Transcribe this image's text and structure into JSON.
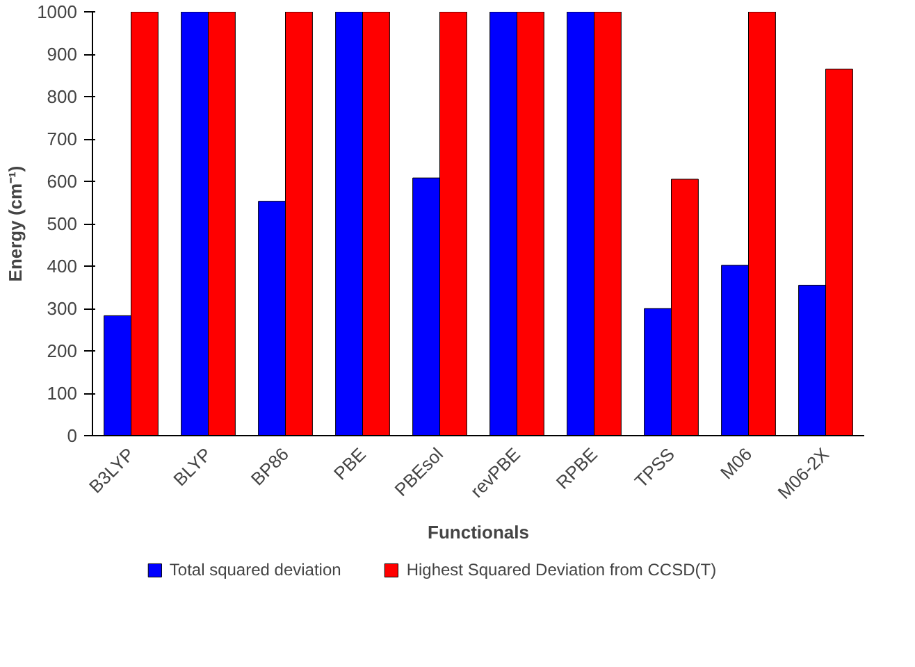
{
  "chart_data": {
    "type": "bar",
    "xlabel": "Functionals",
    "ylabel": "Energy (cm⁻¹)",
    "categories": [
      "B3LYP",
      "BLYP",
      "BP86",
      "PBE",
      "PBEsol",
      "revPBE",
      "RPBE",
      "TPSS",
      "M06",
      "M06-2X"
    ],
    "series": [
      {
        "name": "Total squared deviation",
        "color": "#0000ff",
        "values": [
          283,
          1000,
          553,
          1000,
          608,
          1000,
          1000,
          300,
          402,
          355
        ]
      },
      {
        "name": "Highest Squared Deviation from CCSD(T)",
        "color": "#ff0000",
        "values": [
          1000,
          1000,
          1000,
          1000,
          1000,
          1000,
          1000,
          605,
          1000,
          865
        ]
      }
    ],
    "ylim": [
      0,
      1000
    ],
    "yticks": [
      0,
      100,
      200,
      300,
      400,
      500,
      600,
      700,
      800,
      900,
      1000
    ],
    "grid": false,
    "legend": "bottom"
  }
}
